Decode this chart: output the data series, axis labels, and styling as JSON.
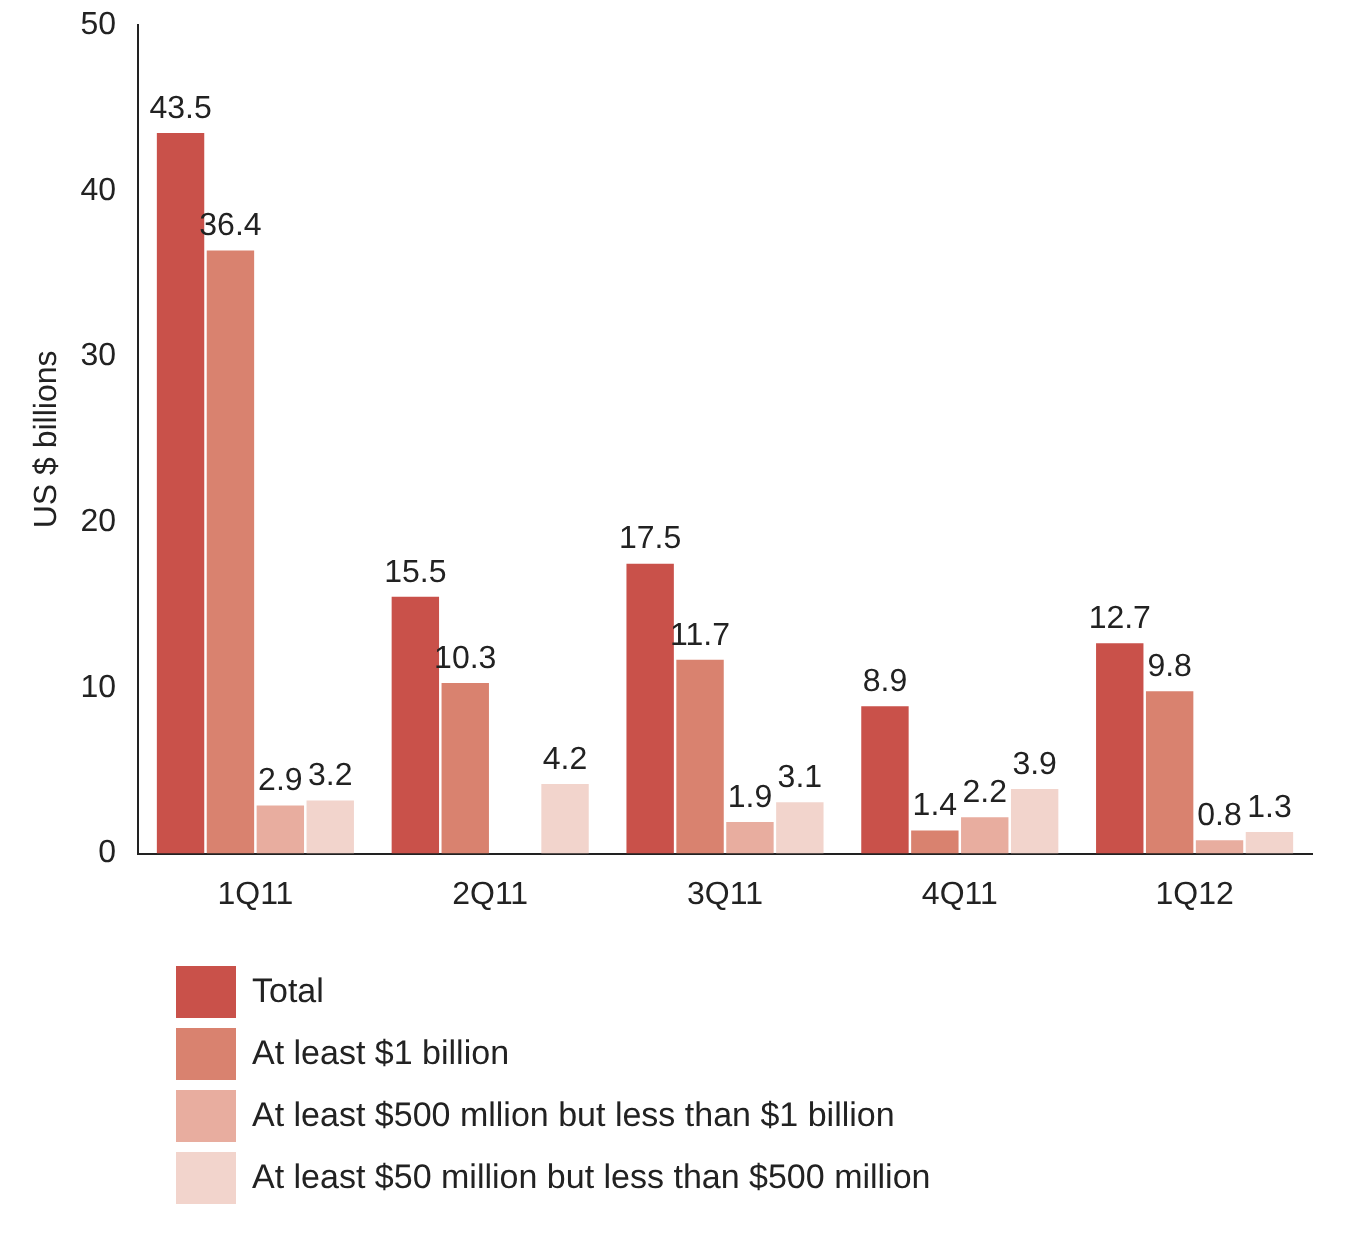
{
  "chart_data": {
    "type": "bar",
    "ylabel": "US $ billions",
    "categories": [
      "1Q11",
      "2Q11",
      "3Q11",
      "4Q11",
      "1Q12"
    ],
    "series": [
      {
        "name": "Total",
        "color": "#c9514a",
        "values": [
          43.5,
          15.5,
          17.5,
          8.9,
          12.7
        ]
      },
      {
        "name": "At least $1 billion",
        "color": "#d9826f",
        "values": [
          36.4,
          10.3,
          11.7,
          1.4,
          9.8
        ]
      },
      {
        "name": "At least $500 mllion but less than $1 billion",
        "color": "#e8ad9f",
        "values": [
          2.9,
          null,
          1.9,
          2.2,
          0.8
        ]
      },
      {
        "name": "At least $50 million but less than $500 million",
        "color": "#f2d4cc",
        "values": [
          3.2,
          4.2,
          3.1,
          3.9,
          1.3
        ]
      }
    ],
    "ylim": [
      0,
      50
    ],
    "yticks": [
      0,
      10,
      20,
      30,
      40,
      50
    ],
    "grid": false,
    "legend": "bottom",
    "data_labels": true
  }
}
